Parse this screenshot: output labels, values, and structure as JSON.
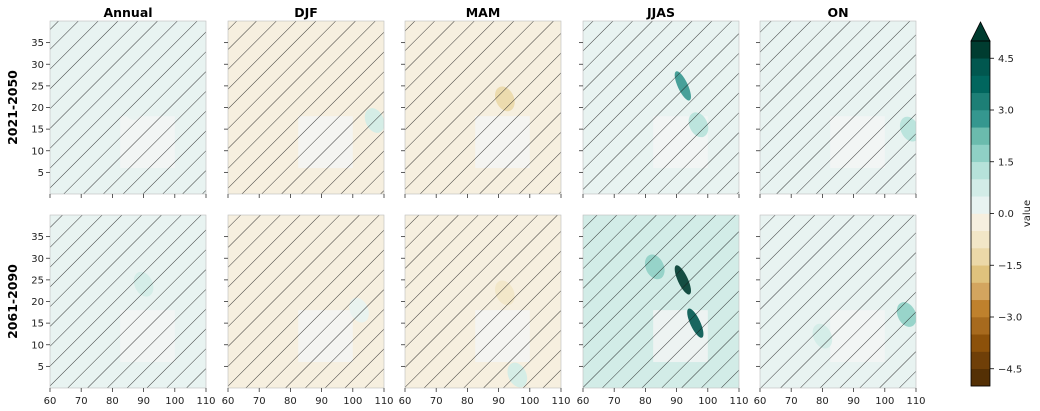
{
  "chart_data": {
    "type": "heatmap",
    "columns": [
      "Annual",
      "DJF",
      "MAM",
      "JJAS",
      "ON"
    ],
    "rows": [
      "2021-2050",
      "2061-2090"
    ],
    "x_ticks": [
      60,
      70,
      80,
      90,
      100,
      110
    ],
    "y_ticks": [
      5,
      10,
      15,
      20,
      25,
      30,
      35
    ],
    "xlim": [
      60,
      110
    ],
    "ylim": [
      0,
      40
    ],
    "grid": false,
    "hatching": "diagonal hatching over most of each panel",
    "panels": [
      {
        "row": "2021-2050",
        "column": "Annual",
        "dominant": 0.0,
        "features": [
          {
            "lon": 86,
            "lat": 20,
            "value": 0.3
          }
        ]
      },
      {
        "row": "2021-2050",
        "column": "DJF",
        "dominant": -0.3,
        "features": [
          {
            "lon": 107,
            "lat": 17,
            "value": 0.5
          }
        ]
      },
      {
        "row": "2021-2050",
        "column": "MAM",
        "dominant": -0.5,
        "features": [
          {
            "lon": 92,
            "lat": 22,
            "value": -1.2
          }
        ]
      },
      {
        "row": "2021-2050",
        "column": "JJAS",
        "dominant": 0.3,
        "features": [
          {
            "lon": 92,
            "lat": 25,
            "value": 2.5
          },
          {
            "lon": 97,
            "lat": 16,
            "value": 1.2
          }
        ]
      },
      {
        "row": "2021-2050",
        "column": "ON",
        "dominant": 0.3,
        "features": [
          {
            "lon": 108,
            "lat": 15,
            "value": 1.0
          }
        ]
      },
      {
        "row": "2061-2090",
        "column": "Annual",
        "dominant": 0.2,
        "features": [
          {
            "lon": 90,
            "lat": 24,
            "value": 0.6
          }
        ]
      },
      {
        "row": "2061-2090",
        "column": "DJF",
        "dominant": -0.3,
        "features": [
          {
            "lon": 102,
            "lat": 18,
            "value": 0.4
          }
        ]
      },
      {
        "row": "2061-2090",
        "column": "MAM",
        "dominant": -0.4,
        "features": [
          {
            "lon": 92,
            "lat": 22,
            "value": -0.9
          },
          {
            "lon": 96,
            "lat": 3,
            "value": 0.7
          }
        ]
      },
      {
        "row": "2061-2090",
        "column": "JJAS",
        "dominant": 0.5,
        "features": [
          {
            "lon": 92,
            "lat": 25,
            "value": 4.8
          },
          {
            "lon": 96,
            "lat": 15,
            "value": 4.0
          },
          {
            "lon": 83,
            "lat": 28,
            "value": 1.5
          }
        ]
      },
      {
        "row": "2061-2090",
        "column": "ON",
        "dominant": 0.4,
        "features": [
          {
            "lon": 107,
            "lat": 17,
            "value": 1.8
          },
          {
            "lon": 80,
            "lat": 12,
            "value": 0.8
          }
        ]
      }
    ],
    "colorbar": {
      "label": "value",
      "range": [
        -5.0,
        5.0
      ],
      "levels": 20,
      "extend": "max",
      "ticks": [
        -4.5,
        -3.0,
        -1.5,
        0.0,
        1.5,
        3.0,
        4.5
      ],
      "tick_labels": [
        "−4.5",
        "−3.0",
        "−1.5",
        "0.0",
        "1.5",
        "3.0",
        "4.5"
      ],
      "colormap": "BrBG",
      "colors": [
        "#543005",
        "#6f3f08",
        "#8c510a",
        "#a76a1e",
        "#bf812d",
        "#d3a55f",
        "#dfc27d",
        "#ebd8a8",
        "#f2e6c7",
        "#f6efdf",
        "#e8f3f1",
        "#d2ece7",
        "#b6e2da",
        "#8fd0c5",
        "#6bbbad",
        "#35978f",
        "#1d7f76",
        "#01665e",
        "#01574f",
        "#003c30"
      ],
      "over_color": "#003c30"
    }
  }
}
